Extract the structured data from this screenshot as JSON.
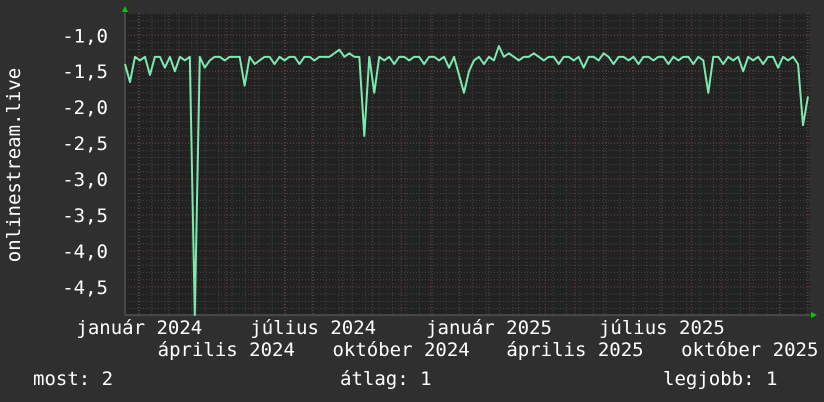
{
  "chart_data": {
    "type": "line",
    "ylabel": "onlinestream.live",
    "xlabel": "",
    "ylim": [
      -4.89,
      -0.69
    ],
    "x_range": [
      "2023-12-17",
      "2025-12-03"
    ],
    "yticks": [
      -1.0,
      -1.5,
      -2.0,
      -2.5,
      -3.0,
      -3.5,
      -4.0,
      -4.5
    ],
    "ytick_labels": [
      "-1,0",
      "-1,5",
      "-2,0",
      "-2,5",
      "-3,0",
      "-3,5",
      "-4,0",
      "-4,5"
    ],
    "xticks": [
      "2024-01-01",
      "2024-04-01",
      "2024-07-01",
      "2024-10-01",
      "2025-01-01",
      "2025-04-01",
      "2025-07-01",
      "2025-10-01"
    ],
    "xtick_labels": [
      "január 2024",
      "április 2024",
      "július 2024",
      "október 2024",
      "január 2025",
      "április 2025",
      "július 2025",
      "október 2025"
    ],
    "grid": true,
    "line_color": "#7de8b0",
    "values": [
      -1.4,
      -1.65,
      -1.3,
      -1.35,
      -1.3,
      -1.55,
      -1.3,
      -1.3,
      -1.45,
      -1.3,
      -1.5,
      -1.3,
      -1.35,
      -1.3,
      -4.9,
      -1.3,
      -1.45,
      -1.35,
      -1.3,
      -1.3,
      -1.35,
      -1.3,
      -1.3,
      -1.3,
      -1.7,
      -1.3,
      -1.4,
      -1.35,
      -1.3,
      -1.3,
      -1.4,
      -1.3,
      -1.35,
      -1.3,
      -1.3,
      -1.4,
      -1.3,
      -1.3,
      -1.35,
      -1.3,
      -1.3,
      -1.3,
      -1.25,
      -1.2,
      -1.3,
      -1.25,
      -1.3,
      -1.3,
      -2.4,
      -1.3,
      -1.8,
      -1.3,
      -1.35,
      -1.3,
      -1.4,
      -1.3,
      -1.3,
      -1.35,
      -1.3,
      -1.3,
      -1.4,
      -1.3,
      -1.3,
      -1.35,
      -1.3,
      -1.45,
      -1.3,
      -1.55,
      -1.8,
      -1.5,
      -1.35,
      -1.3,
      -1.4,
      -1.3,
      -1.35,
      -1.15,
      -1.3,
      -1.25,
      -1.3,
      -1.35,
      -1.3,
      -1.3,
      -1.25,
      -1.3,
      -1.35,
      -1.3,
      -1.3,
      -1.4,
      -1.3,
      -1.3,
      -1.35,
      -1.3,
      -1.45,
      -1.3,
      -1.3,
      -1.35,
      -1.25,
      -1.3,
      -1.4,
      -1.3,
      -1.3,
      -1.35,
      -1.3,
      -1.4,
      -1.3,
      -1.3,
      -1.35,
      -1.3,
      -1.3,
      -1.4,
      -1.3,
      -1.35,
      -1.3,
      -1.3,
      -1.4,
      -1.3,
      -1.35,
      -1.8,
      -1.3,
      -1.3,
      -1.4,
      -1.3,
      -1.35,
      -1.3,
      -1.5,
      -1.3,
      -1.35,
      -1.3,
      -1.4,
      -1.3,
      -1.3,
      -1.45,
      -1.3,
      -1.35,
      -1.3,
      -1.4,
      -2.25,
      -1.85
    ]
  },
  "legend": {
    "current": "most: 2",
    "average": "átlag: 1",
    "best": "legjobb: 1"
  }
}
